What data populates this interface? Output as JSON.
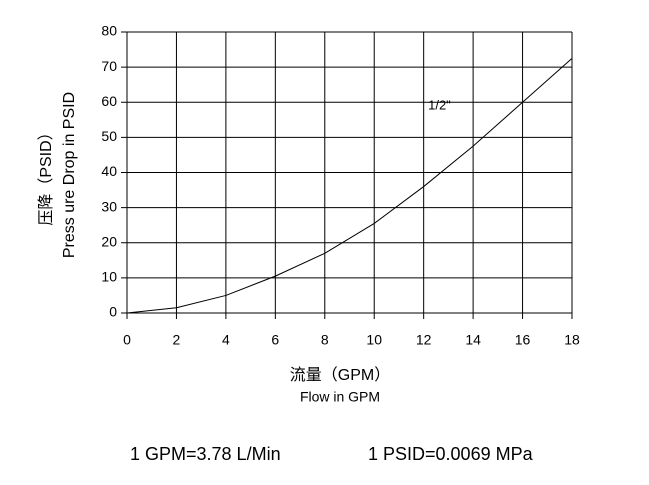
{
  "chart_data": {
    "type": "line",
    "ylabel": [
      "压降（PSID）",
      "Press ure Drop in PSID"
    ],
    "xlabel": [
      "流量（GPM）",
      "Flow in GPM"
    ],
    "x": [
      0,
      2,
      4,
      6,
      8,
      10,
      12,
      14,
      16,
      18
    ],
    "series": [
      {
        "name": "1/2\"",
        "color": "#000000",
        "values": [
          0,
          1.5,
          5,
          10.5,
          17,
          25.5,
          36,
          47.5,
          60,
          72.5
        ]
      }
    ],
    "xlim": [
      0,
      18
    ],
    "xticks": [
      0,
      2,
      4,
      6,
      8,
      10,
      12,
      14,
      16,
      18
    ],
    "ylim": [
      0,
      80
    ],
    "yticks": [
      0,
      10,
      20,
      30,
      40,
      50,
      60,
      70,
      80
    ],
    "grid": true,
    "notes": [
      "1 GPM=3.78 L/Min",
      "1 PSID=0.0069 MPa"
    ]
  }
}
